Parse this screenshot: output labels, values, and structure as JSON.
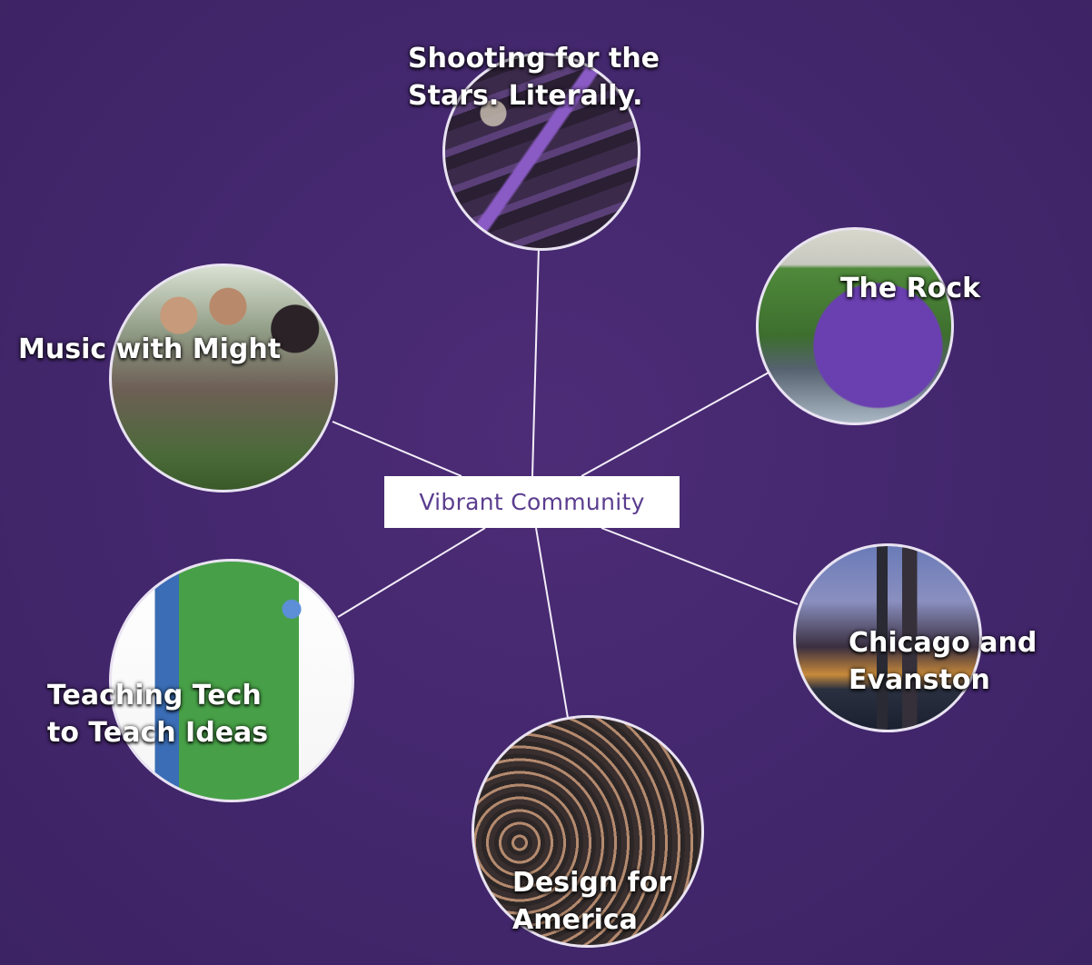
{
  "center": {
    "label": "Vibrant Community"
  },
  "nodes": [
    {
      "id": "stars",
      "line1": "Shooting for the",
      "line2": "Stars. Literally."
    },
    {
      "id": "rock",
      "line1": "The Rock",
      "line2": ""
    },
    {
      "id": "music",
      "line1": "Music with Might",
      "line2": ""
    },
    {
      "id": "chicago",
      "line1": "Chicago and",
      "line2": "Evanston"
    },
    {
      "id": "tech",
      "line1": "Teaching Tech",
      "line2": "to Teach Ideas"
    },
    {
      "id": "dfa",
      "line1": "Design for",
      "line2": "America"
    }
  ],
  "colors": {
    "background": "#43276d",
    "center_box_bg": "#ffffff",
    "center_text": "#5b3d8f",
    "connector": "#f4eefa"
  }
}
